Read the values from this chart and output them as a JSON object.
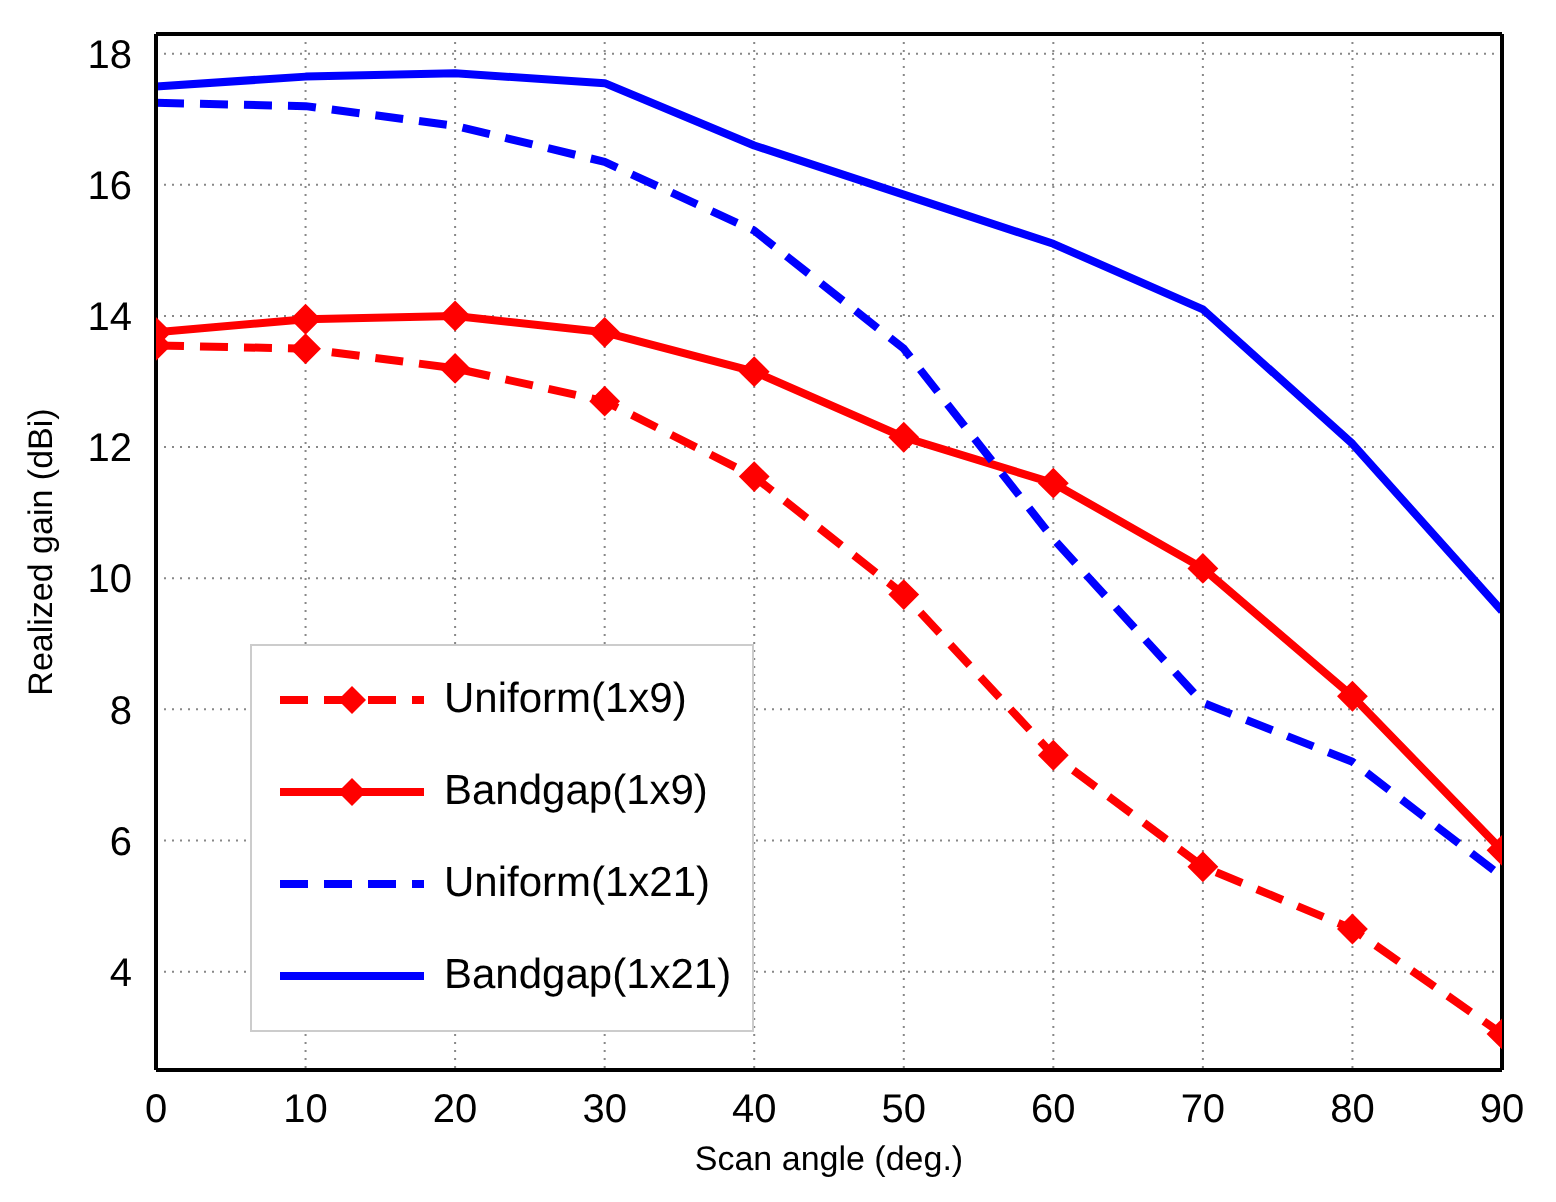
{
  "chart_data": {
    "type": "line",
    "xlabel": "Scan angle (deg.)",
    "ylabel": "Realized gain (dBi)",
    "x": [
      0,
      10,
      20,
      30,
      40,
      50,
      60,
      70,
      80,
      90
    ],
    "series": [
      {
        "name": "Uniform(1x9)",
        "color": "#ff0000",
        "line_style": "dashed",
        "marker": "diamond",
        "values": [
          13.55,
          13.5,
          13.2,
          12.7,
          11.55,
          9.75,
          7.3,
          5.6,
          4.65,
          3.05
        ]
      },
      {
        "name": "Bandgap(1x9)",
        "color": "#ff0000",
        "line_style": "solid",
        "marker": "diamond",
        "values": [
          13.75,
          13.95,
          14.0,
          13.75,
          13.15,
          12.15,
          11.45,
          10.15,
          8.2,
          5.85
        ]
      },
      {
        "name": "Uniform(1x21)",
        "color": "#0000ff",
        "line_style": "dashed",
        "marker": "none",
        "values": [
          17.25,
          17.2,
          16.9,
          16.35,
          15.3,
          13.5,
          10.6,
          8.1,
          7.2,
          5.45
        ]
      },
      {
        "name": "Bandgap(1x21)",
        "color": "#0000ff",
        "line_style": "solid",
        "marker": "none",
        "values": [
          17.5,
          17.65,
          17.7,
          17.55,
          16.6,
          15.85,
          15.1,
          14.1,
          12.05,
          9.5
        ]
      }
    ],
    "xlim": [
      0,
      90
    ],
    "xticks": [
      0,
      10,
      20,
      30,
      40,
      50,
      60,
      70,
      80,
      90
    ],
    "ylim": [
      2.5,
      18.3
    ],
    "yticks": [
      4,
      6,
      8,
      10,
      12,
      14,
      16,
      18
    ],
    "grid": true,
    "legend": "bottom left"
  }
}
